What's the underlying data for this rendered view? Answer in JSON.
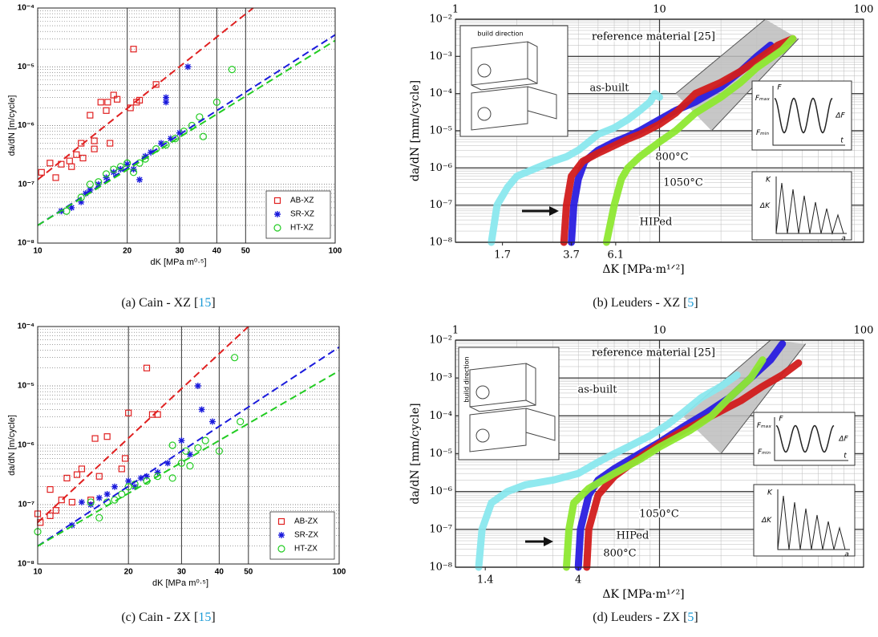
{
  "chart_data": [
    {
      "type": "scatter",
      "log_x": true,
      "log_y": true,
      "grid": true,
      "legend": "lower right",
      "caption": [
        "(a) Cain - XZ [",
        "15",
        "]"
      ],
      "xlabel": "dK [MPa m⁰·⁵]",
      "ylabel": "da/dN [m/cycle]",
      "xlim": [
        10,
        100
      ],
      "ylim": [
        1e-08,
        0.0001
      ],
      "xticks": [
        10,
        20,
        30,
        40,
        50,
        100
      ],
      "yticks": [
        {
          "value": 1e-08,
          "label": "10⁻⁸"
        },
        {
          "value": 1e-07,
          "label": "10⁻⁷"
        },
        {
          "value": 1e-06,
          "label": "10⁻⁶"
        },
        {
          "value": 1e-05,
          "label": "10⁻⁵"
        },
        {
          "value": 0.0001,
          "label": "10⁻⁴"
        }
      ],
      "yminor": [
        2e-08,
        3e-08,
        4e-08,
        5e-08,
        6e-08,
        7e-08,
        8e-08,
        9e-08,
        2e-07,
        3e-07,
        4e-07,
        5e-07,
        6e-07,
        7e-07,
        8e-07,
        9e-07,
        2e-06,
        3e-06,
        4e-06,
        5e-06,
        6e-06,
        7e-06,
        8e-06,
        9e-06,
        2e-05,
        3e-05,
        4e-05,
        5e-05,
        6e-05,
        7e-05,
        8e-05,
        9e-05
      ],
      "series": [
        {
          "name": "AB-XZ",
          "color": "#e02020",
          "marker": "square",
          "x": [
            10.3,
            11,
            11.5,
            12,
            12.8,
            13,
            13.5,
            14,
            14.2,
            15,
            15.5,
            15.5,
            16.3,
            17,
            17.2,
            17.5,
            18,
            18.5,
            20.5,
            21,
            21.5,
            22,
            25
          ],
          "values": [
            1.6e-07,
            2.3e-07,
            1.3e-07,
            2.2e-07,
            2.5e-07,
            2e-07,
            3.2e-07,
            5e-07,
            2.8e-07,
            1.5e-06,
            5.5e-07,
            4e-07,
            2.5e-06,
            1.8e-06,
            2.5e-06,
            5e-07,
            3.3e-06,
            2.8e-06,
            2e-06,
            2e-05,
            2.5e-06,
            2.7e-06,
            5e-06
          ],
          "fit_x": [
            10,
            53
          ],
          "fit_y": [
            1.2e-07,
            0.0001
          ]
        },
        {
          "name": "SR-XZ",
          "color": "#1a1adc",
          "marker": "star",
          "x": [
            12,
            13,
            14,
            14.5,
            15,
            16,
            17,
            18,
            19,
            20,
            21,
            22,
            23,
            24,
            26,
            28,
            30,
            27,
            27,
            32
          ],
          "values": [
            3.5e-08,
            4e-08,
            5e-08,
            7e-08,
            8e-08,
            1e-07,
            1.3e-07,
            1.6e-07,
            1.8e-07,
            2.2e-07,
            1.8e-07,
            1.2e-07,
            3e-07,
            3.5e-07,
            5e-07,
            6e-07,
            7.5e-07,
            3e-06,
            2.5e-06,
            1e-05
          ],
          "fit_x": [
            10,
            100
          ],
          "fit_y": [
            2e-08,
            3.5e-05
          ]
        },
        {
          "name": "HT-XZ",
          "color": "#22cc22",
          "marker": "circle",
          "x": [
            12.5,
            14,
            15,
            16,
            17,
            18,
            19,
            20,
            21,
            22,
            23,
            25,
            27,
            29,
            31,
            33,
            35,
            36,
            40,
            45
          ],
          "values": [
            3.5e-08,
            6e-08,
            1e-07,
            1.1e-07,
            1.5e-07,
            1.8e-07,
            2e-07,
            2.3e-07,
            1.6e-07,
            2.3e-07,
            2.7e-07,
            4e-07,
            4.7e-07,
            6e-07,
            8e-07,
            1e-06,
            1.4e-06,
            6.5e-07,
            2.5e-06,
            9e-06
          ],
          "fit_x": [
            10,
            100
          ],
          "fit_y": [
            2e-08,
            2.8e-05
          ]
        }
      ]
    },
    {
      "type": "line",
      "log_x": true,
      "log_y": true,
      "grid": true,
      "caption": [
        "(b) Leuders - XZ [",
        "5",
        "]"
      ],
      "xlabel": "ΔK [MPa·m¹ᐟ²]",
      "ylabel": "da/dN [mm/cycle]",
      "xlim": [
        1,
        100
      ],
      "ylim": [
        1e-08,
        0.01
      ],
      "xticks": [
        1,
        10,
        100
      ],
      "xminor": [
        2,
        3,
        4,
        5,
        6,
        7,
        8,
        9,
        20,
        30,
        40,
        50,
        60,
        70,
        80,
        90
      ],
      "yticks": [
        {
          "value": 1e-08,
          "label": "10⁻⁸"
        },
        {
          "value": 1e-07,
          "label": "10⁻⁷"
        },
        {
          "value": 1e-06,
          "label": "10⁻⁶"
        },
        {
          "value": 1e-05,
          "label": "10⁻⁵"
        },
        {
          "value": 0.0001,
          "label": "10⁻⁴"
        },
        {
          "value": 0.001,
          "label": "10⁻³"
        },
        {
          "value": 0.01,
          "label": "10⁻²"
        }
      ],
      "yminor": [
        2e-08,
        3e-08,
        4e-08,
        5e-08,
        6e-08,
        7e-08,
        8e-08,
        9e-08,
        2e-07,
        3e-07,
        4e-07,
        5e-07,
        6e-07,
        7e-07,
        8e-07,
        9e-07,
        2e-06,
        3e-06,
        4e-06,
        5e-06,
        6e-06,
        7e-06,
        8e-06,
        9e-06,
        2e-05,
        3e-05,
        4e-05,
        5e-05,
        6e-05,
        7e-05,
        8e-05,
        9e-05,
        0.0002,
        0.0003,
        0.0004,
        0.0005,
        0.0006,
        0.0007,
        0.0008,
        0.0009,
        0.002,
        0.003,
        0.004,
        0.005,
        0.006,
        0.007,
        0.008,
        0.009
      ],
      "thresholds": [
        1.7,
        3.7,
        6.1
      ],
      "band": {
        "label": "reference material [25]",
        "upper_x": [
          12,
          33
        ],
        "upper": [
          0.0001,
          0.01
        ],
        "lower_x": [
          18,
          48
        ],
        "lower": [
          1e-05,
          0.003
        ]
      },
      "specimen_inset": "build direction",
      "load_inset": [
        "F",
        "Fₘₐₓ",
        "Fₘᵢₙ",
        "ΔF",
        "t"
      ],
      "k_inset": [
        "K",
        "ΔK",
        "a"
      ],
      "series": [
        {
          "name": "as-built",
          "color": "#8ae8ee",
          "x": [
            1.5,
            1.6,
            1.8,
            2,
            2.5,
            3,
            3.5,
            4,
            4.5,
            5,
            6,
            7,
            8,
            9,
            9.5,
            10
          ],
          "values": [
            1e-08,
            1e-07,
            3e-07,
            6e-07,
            1e-06,
            1.5e-06,
            2e-06,
            3e-06,
            5e-06,
            8e-06,
            1.2e-05,
            2e-05,
            3.5e-05,
            6e-05,
            0.0001,
            8e-05
          ]
        },
        {
          "name": "800°C",
          "color": "#2a1ee0",
          "x": [
            3.7,
            3.8,
            4,
            4.3,
            5,
            6,
            7,
            8,
            10,
            12,
            15,
            20,
            25,
            30,
            35
          ],
          "values": [
            1e-08,
            1e-07,
            5e-07,
            1.5e-06,
            3e-06,
            5e-06,
            7e-06,
            1e-05,
            2e-05,
            3.5e-05,
            6e-05,
            0.00015,
            0.0004,
            0.001,
            0.002
          ]
        },
        {
          "name": "1050°C",
          "color": "#d21c1c",
          "x": [
            3.4,
            3.5,
            3.7,
            4.2,
            5,
            6,
            7,
            8,
            10,
            12,
            15,
            20,
            25,
            30,
            38,
            45
          ],
          "values": [
            1e-08,
            1e-07,
            6e-07,
            1.5e-06,
            2.5e-06,
            4e-06,
            6e-06,
            8e-06,
            1.5e-05,
            3e-05,
            0.0001,
            0.0002,
            0.0004,
            0.0008,
            0.002,
            0.003
          ]
        },
        {
          "name": "HIPed",
          "color": "#8ee832",
          "x": [
            5.5,
            6,
            6.5,
            7,
            8,
            10,
            12,
            15,
            20,
            25,
            30,
            40,
            45
          ],
          "values": [
            1e-08,
            1e-07,
            5e-07,
            1e-06,
            2e-06,
            5e-06,
            1e-05,
            3e-05,
            8e-05,
            0.0002,
            0.0005,
            0.0015,
            0.003
          ]
        }
      ]
    },
    {
      "type": "scatter",
      "log_x": true,
      "log_y": true,
      "grid": true,
      "legend": "lower right",
      "caption": [
        "(c) Cain - ZX [",
        "15",
        "]"
      ],
      "xlabel": "dK [MPa m⁰·⁵]",
      "ylabel": "da/dN [m/cycle]",
      "xlim": [
        10,
        100
      ],
      "ylim": [
        1e-08,
        0.0001
      ],
      "xticks": [
        10,
        20,
        30,
        40,
        50,
        100
      ],
      "yticks": [
        {
          "value": 1e-08,
          "label": "10⁻⁸"
        },
        {
          "value": 1e-07,
          "label": "10⁻⁷"
        },
        {
          "value": 1e-06,
          "label": "10⁻⁶"
        },
        {
          "value": 1e-05,
          "label": "10⁻⁵"
        },
        {
          "value": 0.0001,
          "label": "10⁻⁴"
        }
      ],
      "yminor": [
        2e-08,
        3e-08,
        4e-08,
        5e-08,
        6e-08,
        7e-08,
        8e-08,
        9e-08,
        2e-07,
        3e-07,
        4e-07,
        5e-07,
        6e-07,
        7e-07,
        8e-07,
        9e-07,
        2e-06,
        3e-06,
        4e-06,
        5e-06,
        6e-06,
        7e-06,
        8e-06,
        9e-06,
        2e-05,
        3e-05,
        4e-05,
        5e-05,
        6e-05,
        7e-05,
        8e-05,
        9e-05
      ],
      "series": [
        {
          "name": "AB-ZX",
          "color": "#e02020",
          "marker": "square",
          "x": [
            10,
            10.2,
            11,
            11,
            11.5,
            12,
            12.5,
            13,
            13.5,
            14,
            15,
            15.5,
            16,
            17,
            19,
            19.5,
            20,
            23,
            24,
            25
          ],
          "values": [
            7e-08,
            5e-08,
            1.8e-07,
            6.5e-08,
            8e-08,
            1.2e-07,
            2.8e-07,
            1.1e-07,
            3.2e-07,
            4e-07,
            1.2e-07,
            1.3e-06,
            3e-07,
            1.4e-06,
            4e-07,
            6e-07,
            3.5e-06,
            2e-05,
            3.3e-06,
            3.3e-06
          ],
          "fit_x": [
            10,
            50
          ],
          "fit_y": [
            5e-08,
            0.0001
          ]
        },
        {
          "name": "SR-ZX",
          "color": "#1a1adc",
          "marker": "star",
          "x": [
            13,
            14,
            15,
            16,
            17,
            18,
            20,
            21,
            22,
            23,
            25,
            27,
            30,
            32,
            34,
            35,
            38
          ],
          "values": [
            4.5e-08,
            1.1e-07,
            1e-07,
            1.3e-07,
            1.5e-07,
            2e-07,
            2.5e-07,
            2e-07,
            2.8e-07,
            3e-07,
            3.5e-07,
            5e-07,
            1.2e-06,
            7e-07,
            1e-05,
            4e-06,
            2.5e-06
          ],
          "fit_x": [
            10,
            100
          ],
          "fit_y": [
            2e-08,
            4.5e-05
          ]
        },
        {
          "name": "HT-ZX",
          "color": "#22cc22",
          "marker": "circle",
          "x": [
            10,
            15,
            16,
            17,
            18,
            19,
            20,
            21,
            23,
            25,
            28,
            28,
            30,
            31,
            32,
            34,
            36,
            40,
            45,
            47
          ],
          "values": [
            3.5e-08,
            1.1e-07,
            6e-08,
            1.1e-07,
            1.2e-07,
            1.5e-07,
            2e-07,
            2.2e-07,
            2.5e-07,
            3e-07,
            1e-06,
            2.8e-07,
            5e-07,
            8e-07,
            4.5e-07,
            9e-07,
            1.2e-06,
            8e-07,
            3e-05,
            2.5e-06
          ],
          "fit_x": [
            10,
            100
          ],
          "fit_y": [
            2e-08,
            1.8e-05
          ]
        }
      ]
    },
    {
      "type": "line",
      "log_x": true,
      "log_y": true,
      "grid": true,
      "caption": [
        "(d) Leuders - ZX [",
        "5",
        "]"
      ],
      "xlabel": "ΔK [MPa·m¹ᐟ²]",
      "ylabel": "da/dN [mm/cycle]",
      "xlim": [
        1,
        100
      ],
      "ylim": [
        1e-08,
        0.01
      ],
      "xticks": [
        1,
        10,
        100
      ],
      "xminor": [
        2,
        3,
        4,
        5,
        6,
        7,
        8,
        9,
        20,
        30,
        40,
        50,
        60,
        70,
        80,
        90
      ],
      "yticks": [
        {
          "value": 1e-08,
          "label": "10⁻⁸"
        },
        {
          "value": 1e-07,
          "label": "10⁻⁷"
        },
        {
          "value": 1e-06,
          "label": "10⁻⁶"
        },
        {
          "value": 1e-05,
          "label": "10⁻⁵"
        },
        {
          "value": 0.0001,
          "label": "10⁻⁴"
        },
        {
          "value": 0.001,
          "label": "10⁻³"
        },
        {
          "value": 0.01,
          "label": "10⁻²"
        }
      ],
      "yminor": [
        2e-08,
        3e-08,
        4e-08,
        5e-08,
        6e-08,
        7e-08,
        8e-08,
        9e-08,
        2e-07,
        3e-07,
        4e-07,
        5e-07,
        6e-07,
        7e-07,
        8e-07,
        9e-07,
        2e-06,
        3e-06,
        4e-06,
        5e-06,
        6e-06,
        7e-06,
        8e-06,
        9e-06,
        2e-05,
        3e-05,
        4e-05,
        5e-05,
        6e-05,
        7e-05,
        8e-05,
        9e-05,
        0.0002,
        0.0003,
        0.0004,
        0.0005,
        0.0006,
        0.0007,
        0.0008,
        0.0009,
        0.002,
        0.003,
        0.004,
        0.005,
        0.006,
        0.007,
        0.008,
        0.009
      ],
      "thresholds": [
        1.4,
        4.0
      ],
      "band": {
        "label": "reference material [25]",
        "upper_x": [
          13,
          35
        ],
        "upper": [
          0.0001,
          0.01
        ],
        "lower_x": [
          20,
          52
        ],
        "lower": [
          1e-05,
          0.008
        ]
      },
      "specimen_inset": "build direction",
      "load_inset": [
        "F",
        "Fₘₐₓ",
        "Fₘᵢₙ",
        "ΔF",
        "t"
      ],
      "k_inset": [
        "K",
        "ΔK",
        "a"
      ],
      "series": [
        {
          "name": "as-built",
          "color": "#8ae8ee",
          "x": [
            1.3,
            1.35,
            1.5,
            1.8,
            2.2,
            3,
            4,
            5,
            6,
            7,
            9,
            11,
            13,
            16,
            20,
            24
          ],
          "values": [
            1e-08,
            1e-07,
            5e-07,
            1e-06,
            1.5e-06,
            2e-06,
            3e-06,
            6e-06,
            1e-05,
            1.5e-05,
            3e-05,
            6e-05,
            0.00012,
            0.0003,
            0.0006,
            0.0012
          ]
        },
        {
          "name": "HIPed",
          "color": "#2a1ee0",
          "x": [
            4,
            4.1,
            4.5,
            5,
            6,
            8,
            10,
            13,
            17,
            22,
            28,
            35,
            40
          ],
          "values": [
            1e-08,
            1e-07,
            8e-07,
            2e-06,
            4e-06,
            1e-05,
            2e-05,
            5e-05,
            0.00012,
            0.0003,
            0.001,
            0.003,
            0.008
          ]
        },
        {
          "name": "1050°C",
          "color": "#d21c1c",
          "x": [
            4.4,
            4.5,
            5,
            6,
            8,
            10,
            13,
            18,
            25,
            32,
            40,
            48
          ],
          "values": [
            1e-08,
            1e-07,
            8e-07,
            2.5e-06,
            8e-06,
            1.8e-05,
            4e-05,
            0.0001,
            0.00025,
            0.0006,
            0.0012,
            0.0025
          ]
        },
        {
          "name": "800°C",
          "color": "#8ee832",
          "x": [
            3.5,
            3.6,
            3.8,
            4.5,
            6,
            8,
            10,
            14,
            18,
            22,
            28,
            32
          ],
          "values": [
            1e-08,
            1e-07,
            5e-07,
            1.2e-06,
            3e-06,
            7e-06,
            1.5e-05,
            4e-05,
            0.0001,
            0.0003,
            0.001,
            0.003
          ]
        }
      ]
    }
  ]
}
